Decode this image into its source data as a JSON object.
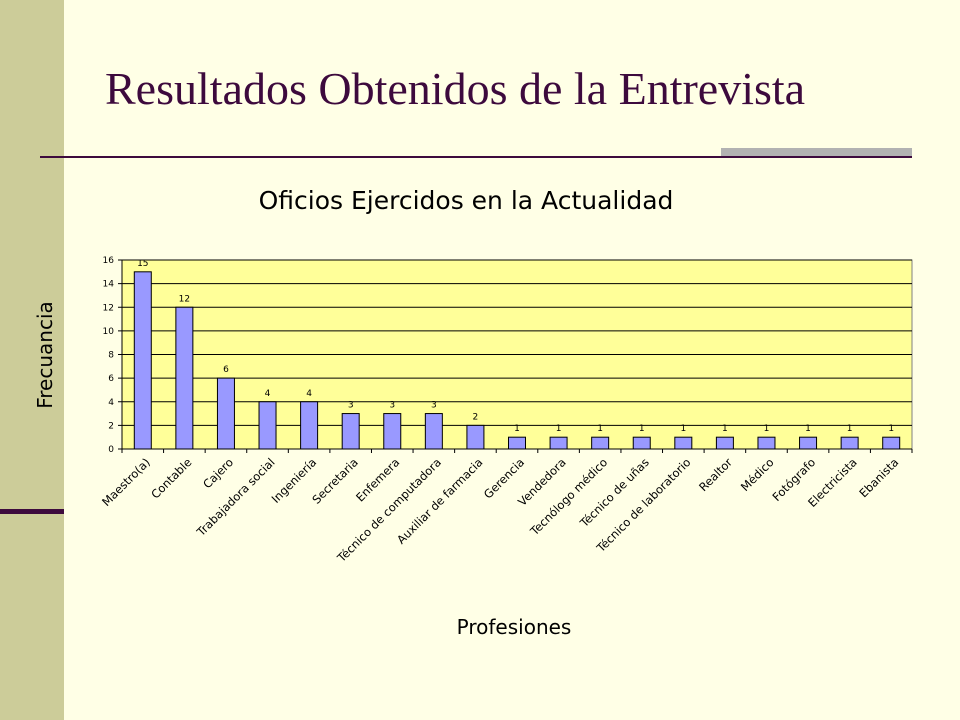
{
  "slide": {
    "title": "Resultados Obtenidos de la Entrevista"
  },
  "colors": {
    "background": "#ffffe6",
    "side_band": "#cccc99",
    "accent": "#3d0a3d",
    "plot_area": "#ffff99",
    "bar_fill": "#9999ff"
  },
  "chart_data": {
    "type": "bar",
    "title": "Oficios Ejercidos en la Actualidad",
    "xlabel": "Profesiones",
    "ylabel": "Frecuancia",
    "ylim": [
      0,
      16
    ],
    "yticks": [
      0,
      2,
      4,
      6,
      8,
      10,
      12,
      14,
      16
    ],
    "grid": true,
    "legend": "none",
    "categories": [
      "Maestro(a)",
      "Contable",
      "Cajero",
      "Trabajadora social",
      "Ingeniería",
      "Secretaria",
      "Enfemera",
      "Técnico de computadora",
      "Auxiliar de farmacia",
      "Gerencia",
      "Vendedora",
      "Tecnólogo médico",
      "Técnico de uñas",
      "Técnico de laboratorio",
      "Realtor",
      "Médico",
      "Fotógrafo",
      "Electricista",
      "Ebanista"
    ],
    "values": [
      15,
      12,
      6,
      4,
      4,
      3,
      3,
      3,
      2,
      1,
      1,
      1,
      1,
      1,
      1,
      1,
      1,
      1,
      1
    ]
  }
}
